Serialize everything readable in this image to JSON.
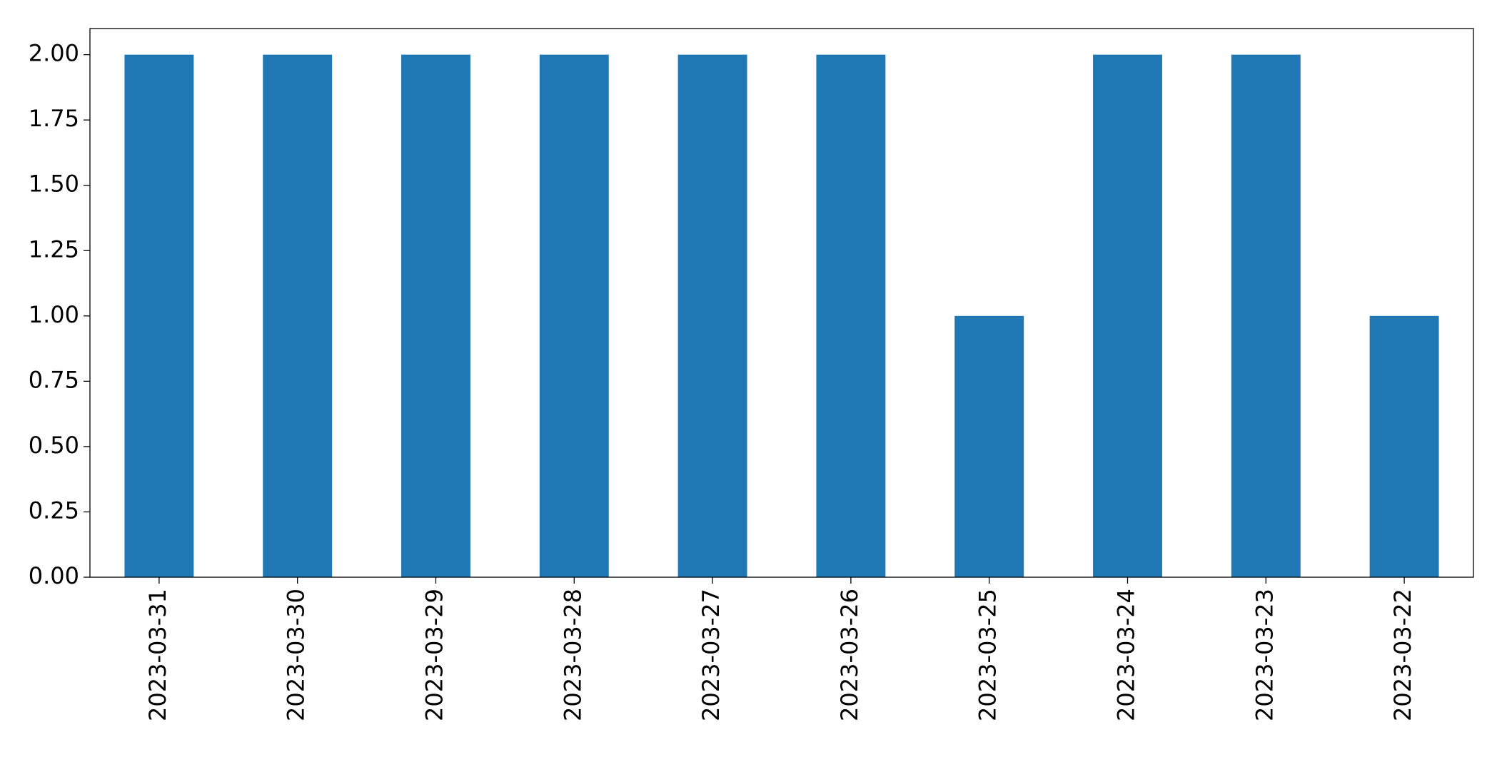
{
  "chart_data": {
    "type": "bar",
    "categories": [
      "2023-03-31",
      "2023-03-30",
      "2023-03-29",
      "2023-03-28",
      "2023-03-27",
      "2023-03-26",
      "2023-03-25",
      "2023-03-24",
      "2023-03-23",
      "2023-03-22"
    ],
    "values": [
      2,
      2,
      2,
      2,
      2,
      2,
      1,
      2,
      2,
      1
    ],
    "color": "#1f77b4",
    "ylim": [
      0,
      2.1
    ],
    "yticks": [
      {
        "value": 0,
        "label": "0.00"
      },
      {
        "value": 0.25,
        "label": "0.25"
      },
      {
        "value": 0.5,
        "label": "0.50"
      },
      {
        "value": 0.75,
        "label": "0.75"
      },
      {
        "value": 1,
        "label": "1.00"
      },
      {
        "value": 1.25,
        "label": "1.25"
      },
      {
        "value": 1.5,
        "label": "1.50"
      },
      {
        "value": 1.75,
        "label": "1.75"
      },
      {
        "value": 2,
        "label": "2.00"
      }
    ],
    "grid": false
  }
}
